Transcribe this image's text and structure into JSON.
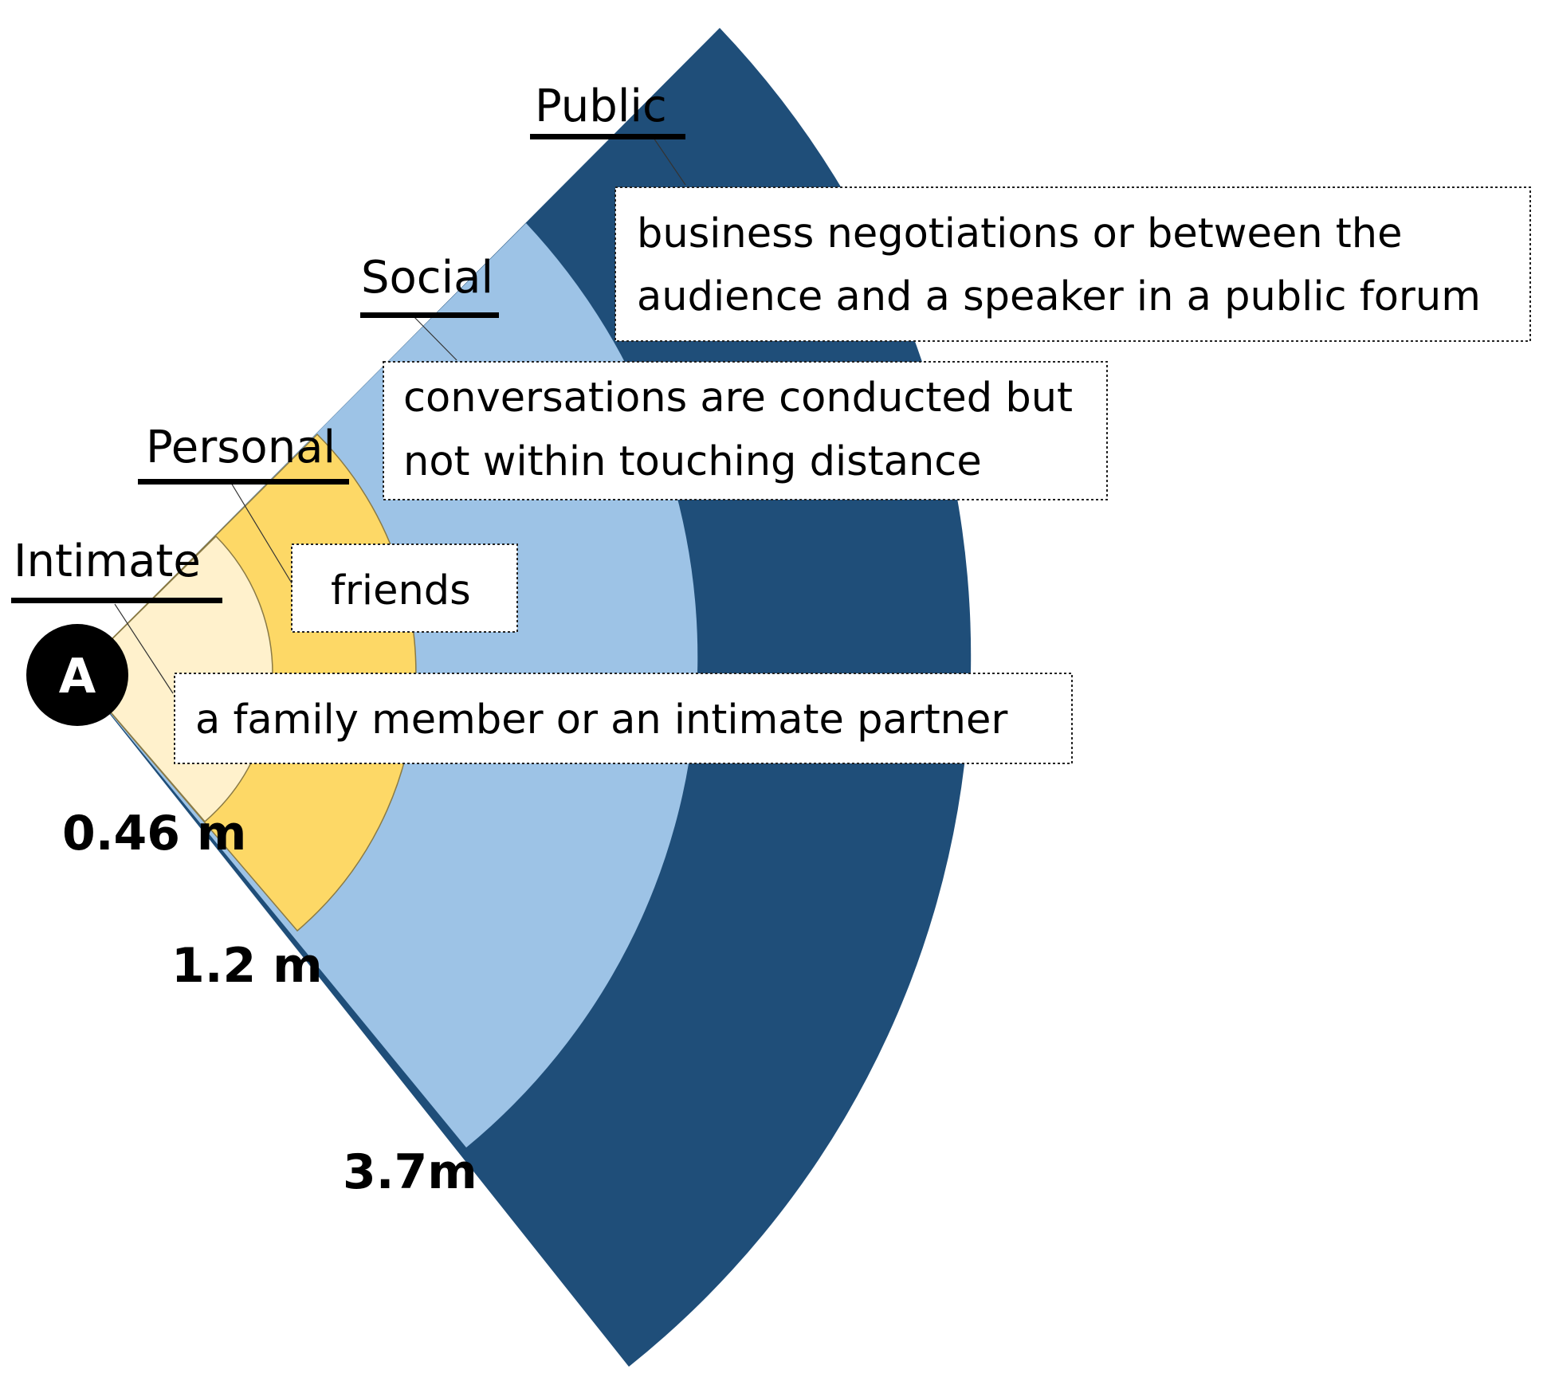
{
  "origin_marker": "A",
  "zones": [
    {
      "id": "intimate",
      "title": "Intimate",
      "description_lines": [
        "a family member or an intimate partner"
      ],
      "color": "#FFF1CC"
    },
    {
      "id": "personal",
      "title": "Personal",
      "description_lines": [
        "friends"
      ],
      "color": "#FDD866"
    },
    {
      "id": "social",
      "title": "Social",
      "description_lines": [
        "conversations are conducted but",
        "not within touching distance"
      ],
      "color": "#9DC3E6"
    },
    {
      "id": "public",
      "title": "Public",
      "description_lines": [
        "business negotiations or between the",
        "audience and a speaker in a public forum"
      ],
      "color": "#1F4E79"
    }
  ],
  "distances": [
    "0.46 m",
    "1.2 m",
    "3.7m"
  ],
  "colors": {
    "marker_fill": "#000000",
    "arc_stroke": "#7a6a3a",
    "text": "#000000"
  }
}
